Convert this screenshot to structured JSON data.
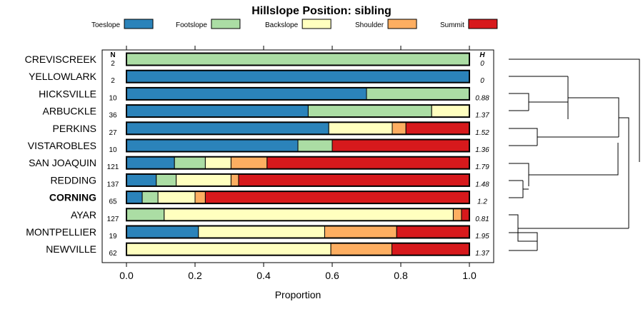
{
  "chart_data": {
    "type": "bar",
    "orientation": "horizontal",
    "stacked": true,
    "title": "Hillslope Position: sibling",
    "xlabel": "Proportion",
    "xlim": [
      0,
      1
    ],
    "xticks": [
      "0.0",
      "0.2",
      "0.4",
      "0.6",
      "0.8",
      "1.0"
    ],
    "n_header": "N",
    "h_header": "H",
    "legend": [
      {
        "name": "Toeslope",
        "color": "#2B83BA"
      },
      {
        "name": "Footslope",
        "color": "#ABDDA4"
      },
      {
        "name": "Backslope",
        "color": "#FFFFBF"
      },
      {
        "name": "Shoulder",
        "color": "#FDAE61"
      },
      {
        "name": "Summit",
        "color": "#D7191C"
      }
    ],
    "rows": [
      {
        "label": "CREVISCREEK",
        "n": "2",
        "h": "0",
        "bold": false,
        "values": [
          0,
          1,
          0,
          0,
          0
        ]
      },
      {
        "label": "YELLOWLARK",
        "n": "2",
        "h": "0",
        "bold": false,
        "values": [
          1,
          0,
          0,
          0,
          0
        ]
      },
      {
        "label": "HICKSVILLE",
        "n": "10",
        "h": "0.88",
        "bold": false,
        "values": [
          0.7,
          0.3,
          0,
          0,
          0
        ]
      },
      {
        "label": "ARBUCKLE",
        "n": "36",
        "h": "1.37",
        "bold": false,
        "values": [
          0.53,
          0.36,
          0.11,
          0,
          0
        ]
      },
      {
        "label": "PERKINS",
        "n": "27",
        "h": "1.52",
        "bold": false,
        "values": [
          0.59,
          0,
          0.185,
          0.04,
          0.185
        ]
      },
      {
        "label": "VISTAROBLES",
        "n": "10",
        "h": "1.36",
        "bold": false,
        "values": [
          0.5,
          0.1,
          0,
          0,
          0.4
        ]
      },
      {
        "label": "SAN JOAQUIN",
        "n": "121",
        "h": "1.79",
        "bold": false,
        "values": [
          0.14,
          0.09,
          0.075,
          0.105,
          0.59
        ]
      },
      {
        "label": "REDDING",
        "n": "137",
        "h": "1.48",
        "bold": false,
        "values": [
          0.087,
          0.058,
          0.16,
          0.022,
          0.673
        ]
      },
      {
        "label": "CORNING",
        "n": "65",
        "h": "1.2",
        "bold": true,
        "values": [
          0.046,
          0.046,
          0.108,
          0.03,
          0.77
        ]
      },
      {
        "label": "AYAR",
        "n": "127",
        "h": "0.81",
        "bold": false,
        "values": [
          0,
          0.11,
          0.843,
          0.024,
          0.023
        ]
      },
      {
        "label": "MONTPELLIER",
        "n": "19",
        "h": "1.95",
        "bold": false,
        "values": [
          0.21,
          0,
          0.368,
          0.21,
          0.212
        ]
      },
      {
        "label": "NEWVILLE",
        "n": "62",
        "h": "1.37",
        "bold": false,
        "values": [
          0,
          0,
          0.596,
          0.178,
          0.226
        ]
      }
    ]
  }
}
